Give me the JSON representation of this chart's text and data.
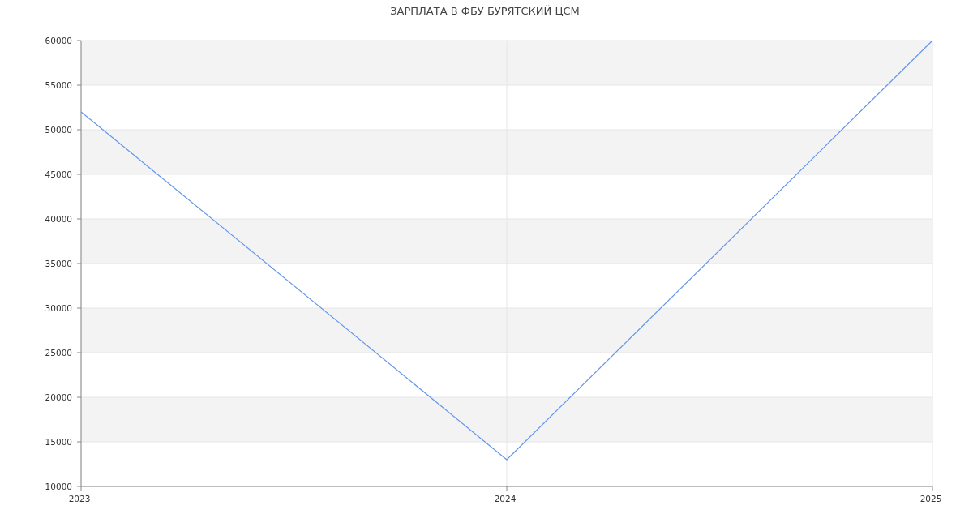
{
  "chart_data": {
    "type": "line",
    "title": "ЗАРПЛАТА В ФБУ БУРЯТСКИЙ ЦСМ",
    "x": [
      2023,
      2024,
      2025
    ],
    "series": [
      {
        "color": "#6495ed",
        "values": [
          52000,
          13000,
          60000
        ]
      }
    ],
    "xlim": [
      2023,
      2025
    ],
    "xticks": [
      2023,
      2024,
      2025
    ],
    "ylim": [
      10000,
      60000
    ],
    "yticks": [
      10000,
      15000,
      20000,
      25000,
      30000,
      35000,
      40000,
      45000,
      50000,
      55000,
      60000
    ],
    "grid": true,
    "marker": "none",
    "line_style": "solid"
  }
}
